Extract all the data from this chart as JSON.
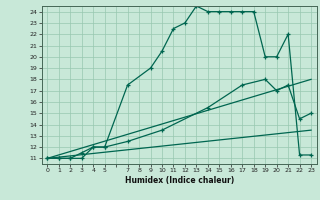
{
  "xlabel": "Humidex (Indice chaleur)",
  "bg_color": "#c8e8d8",
  "grid_color": "#98c8b0",
  "line_color": "#006650",
  "xlim": [
    -0.5,
    23.5
  ],
  "ylim": [
    10.5,
    24.5
  ],
  "yticks": [
    11,
    12,
    13,
    14,
    15,
    16,
    17,
    18,
    19,
    20,
    21,
    22,
    23,
    24
  ],
  "xtick_labels": [
    "0",
    "1",
    "2",
    "3",
    "4",
    "5",
    "",
    "7",
    "8",
    "9",
    "10",
    "11",
    "12",
    "13",
    "14",
    "15",
    "16",
    "17",
    "18",
    "19",
    "20",
    "21",
    "22",
    "23"
  ],
  "xtick_pos": [
    0,
    1,
    2,
    3,
    4,
    5,
    6,
    7,
    8,
    9,
    10,
    11,
    12,
    13,
    14,
    15,
    16,
    17,
    18,
    19,
    20,
    21,
    22,
    23
  ],
  "line1_x": [
    0,
    1,
    2,
    3,
    4,
    5,
    7,
    9,
    10,
    11,
    12,
    13,
    14,
    15,
    16,
    17,
    18,
    19,
    20,
    21,
    22,
    23
  ],
  "line1_y": [
    11,
    11,
    11,
    11.5,
    12,
    12,
    17.5,
    19.0,
    20.5,
    22.5,
    23.0,
    24.5,
    24.0,
    24.0,
    24.0,
    24.0,
    24.0,
    20.0,
    20.0,
    22.0,
    11.3,
    11.3
  ],
  "line2_x": [
    0,
    1,
    2,
    3,
    4,
    5,
    7,
    10,
    14,
    17,
    19,
    20,
    21,
    22,
    23
  ],
  "line2_y": [
    11,
    11,
    11,
    11,
    12,
    12,
    12.5,
    13.5,
    15.5,
    17.5,
    18.0,
    17.0,
    17.5,
    14.5,
    15.0
  ],
  "line3_x": [
    0,
    23
  ],
  "line3_y": [
    11,
    13.5
  ],
  "line4_x": [
    0,
    23
  ],
  "line4_y": [
    11,
    18.0
  ]
}
